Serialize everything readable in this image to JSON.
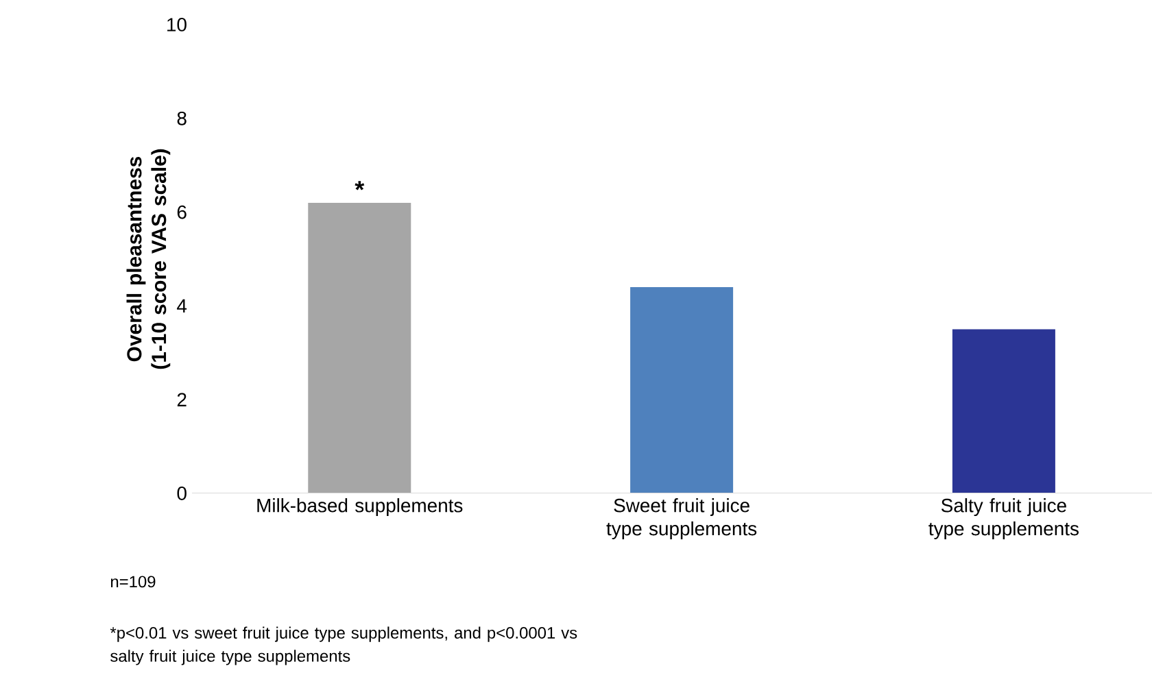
{
  "chart_data": {
    "type": "bar",
    "ylabel": "Overall pleasantness (1-10 score VAS scale)",
    "categories": [
      "Milk-based supplements",
      "Sweet fruit juice type supplements",
      "Salty fruit juice type supplements"
    ],
    "values": [
      6.2,
      4.4,
      3.5
    ],
    "colors": [
      "#a6a6a6",
      "#4f81bd",
      "#2b3595"
    ],
    "ylim": [
      0,
      10
    ],
    "yticks": [
      0,
      2,
      4,
      6,
      8,
      10
    ],
    "annotations": [
      {
        "text": "*",
        "x": "Milk-based supplements",
        "y": 6.2
      },
      "n=109",
      "*p<0.01 vs sweet fruit juice type supplements, and p<0.0001 vs salty fruit juice type supplements"
    ]
  }
}
